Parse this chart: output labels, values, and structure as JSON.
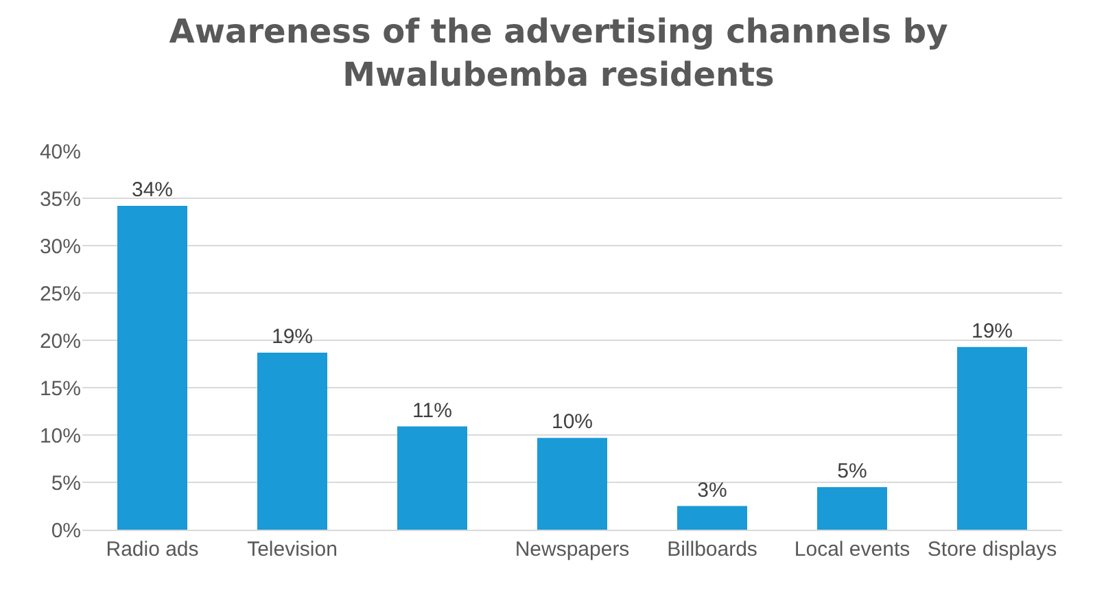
{
  "chart_data": {
    "type": "bar",
    "title": "Awareness of the advertising channels by Mwalubemba residents",
    "categories": [
      "Radio ads",
      "Television",
      null,
      "Newspapers",
      "Billboards",
      "Local events",
      "Store displays"
    ],
    "values": [
      34.2,
      18.7,
      10.9,
      9.7,
      2.5,
      4.5,
      19.3
    ],
    "value_labels": [
      "34%",
      "19%",
      "11%",
      "10%",
      "3%",
      "5%",
      "19%"
    ],
    "color": "#1a9ad6",
    "ylim": [
      0,
      40
    ],
    "yticks": [
      {
        "value": 0,
        "label": "0%"
      },
      {
        "value": 5,
        "label": "5%"
      },
      {
        "value": 10,
        "label": "10%"
      },
      {
        "value": 15,
        "label": "15%"
      },
      {
        "value": 20,
        "label": "20%"
      },
      {
        "value": 25,
        "label": "25%"
      },
      {
        "value": 30,
        "label": "30%"
      },
      {
        "value": 35,
        "label": "35%"
      },
      {
        "value": 40,
        "label": "40%"
      }
    ],
    "grid": "y"
  }
}
